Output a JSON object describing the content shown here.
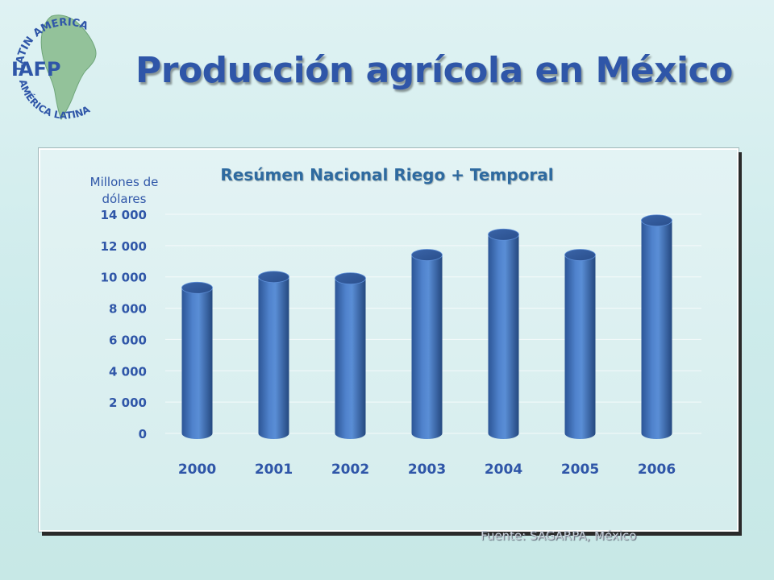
{
  "slide": {
    "title": "Producción agrícola en México",
    "source": "Fuente:  SAGARPA,  México"
  },
  "logo": {
    "text_top": "LATIN AMERICA",
    "text_center": "IAFP",
    "text_bottom": "AMÉRICA LATINA",
    "colors": {
      "text": "#2f56a8",
      "continent": "#93c29a"
    }
  },
  "colors": {
    "title": "#2f56a8",
    "chart_title": "#2e6aa0",
    "bar": "#4a7bc4",
    "axis_text": "#2f56a8"
  },
  "chart_data": {
    "type": "bar",
    "title": "Resúmen Nacional Riego + Temporal",
    "ylabel": "Millones de dólares",
    "xlabel": "",
    "categories": [
      "2000",
      "2001",
      "2002",
      "2003",
      "2004",
      "2005",
      "2006"
    ],
    "series": [
      {
        "values": [
          9300,
          10000,
          9900,
          11400,
          12700,
          11400,
          13600
        ]
      }
    ],
    "ylim": [
      0,
      14000
    ],
    "yticks": [
      0,
      2000,
      4000,
      6000,
      8000,
      10000,
      12000,
      14000
    ],
    "ytick_labels": [
      "0",
      "2 000",
      "4 000",
      "6 000",
      "8 000",
      "10 000",
      "12 000",
      "14 000"
    ],
    "grid": true,
    "legend": "none",
    "bar_shape": "cylinder"
  }
}
